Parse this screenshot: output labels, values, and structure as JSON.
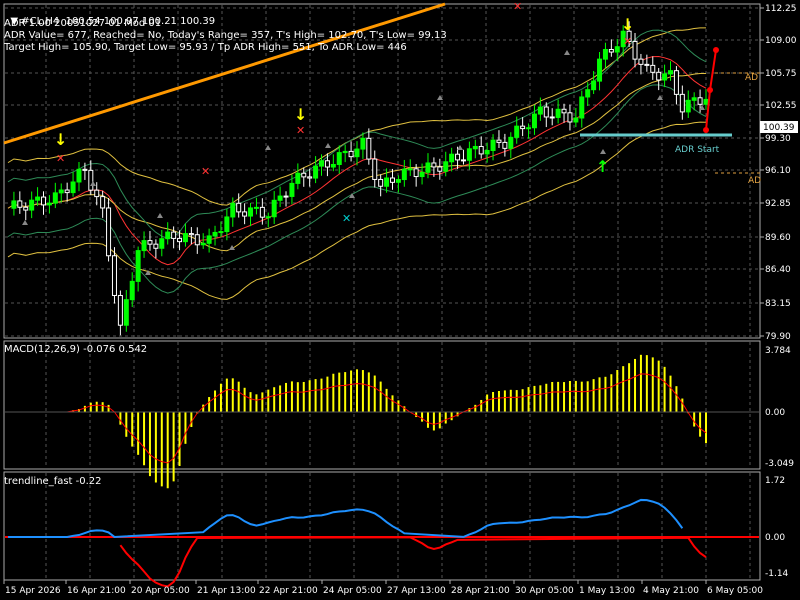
{
  "header": {
    "symbol_line": "#CL,H4  100.54 100.97 100.21 100.39",
    "adr_line": "ADR 1.00 20051027 01 Mod 01",
    "adr_value_line": "ADR Value= 677, Reached= No, Today's Range= 357, T's High= 102.70, T's Low= 99.13",
    "target_line": "Target High= 105.90, Target Low= 95.93 / Tp ADR High= 551, To ADR Low= 446"
  },
  "price_axis": {
    "ticks": [
      "112.25",
      "109.00",
      "105.75",
      "102.55",
      "99.30",
      "96.10",
      "92.85",
      "89.60",
      "86.40",
      "83.15",
      "79.90"
    ],
    "current_price": "100.39"
  },
  "labels": {
    "adr_start": "ADR Start",
    "right_label_top": "AD",
    "right_label_bottom": "AD"
  },
  "macd": {
    "title": "MACD(12,26,9) -0.076 0.542",
    "ticks": [
      "3.784",
      "0.00",
      "-3.049"
    ]
  },
  "trendline": {
    "title": "trendline_fast -0.22",
    "ticks": [
      "1.72",
      "0.00",
      "-1.14"
    ]
  },
  "time_axis": {
    "labels": [
      "15 Apr 2026",
      "16 Apr 21:00",
      "20 Apr 05:00",
      "21 Apr 13:00",
      "22 Apr 21:00",
      "24 Apr 05:00",
      "27 Apr 13:00",
      "28 Apr 21:00",
      "30 Apr 05:00",
      "1 May 13:00",
      "4 May 21:00",
      "6 May 05:00"
    ]
  },
  "colors": {
    "bull_candle": "#00ff00",
    "bear_candle": "#ffffff",
    "macd_hist": "#ffff00",
    "macd_signal": "#ff0000",
    "trend_up": "#1e90ff",
    "trend_down": "#ff0000",
    "trendline": "#ff9900",
    "adr_line": "#66cccc"
  }
}
